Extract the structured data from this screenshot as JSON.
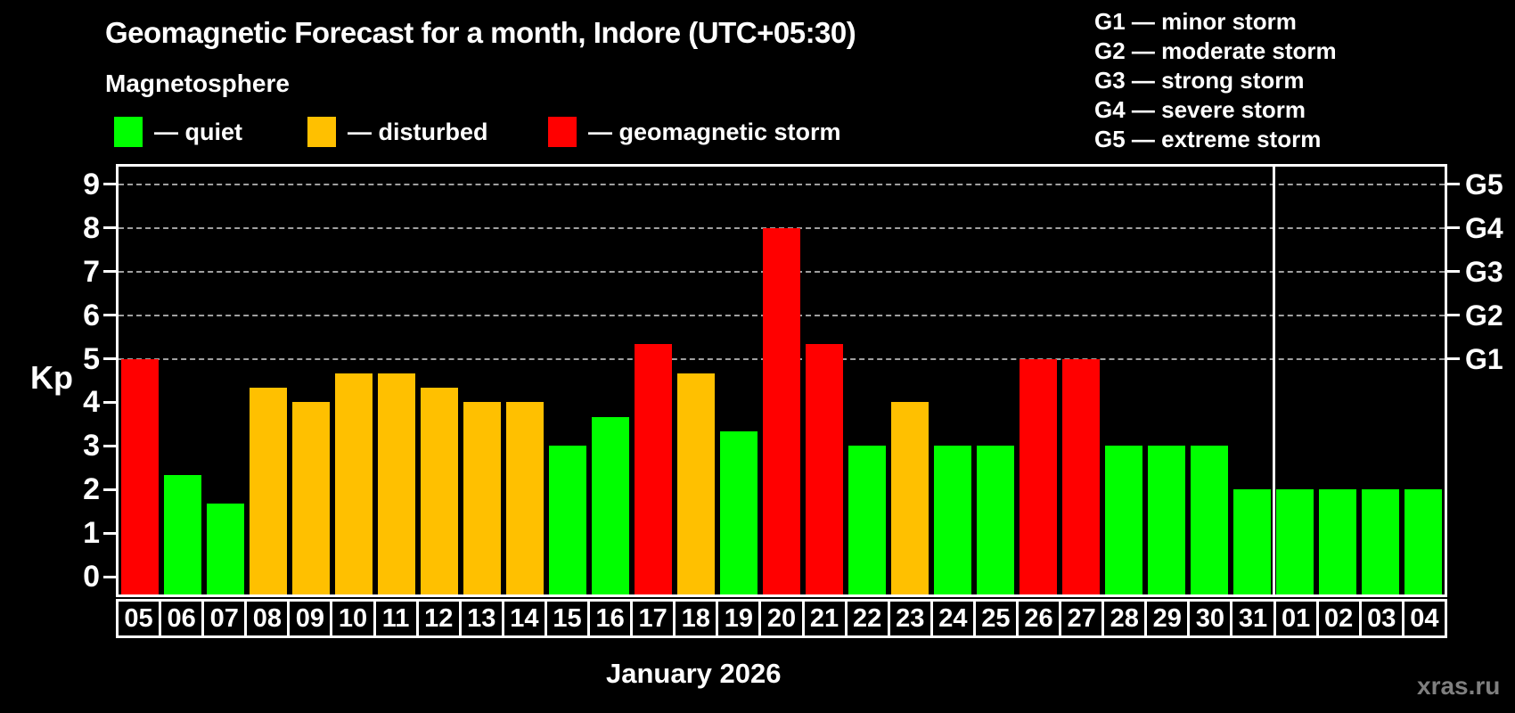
{
  "title": "Geomagnetic Forecast for a month, Indore (UTC+05:30)",
  "subtitle": "Magnetosphere",
  "legend": {
    "items": [
      {
        "key": "quiet",
        "label": "— quiet",
        "color": "#00ff00"
      },
      {
        "key": "disturbed",
        "label": "— disturbed",
        "color": "#ffc000"
      },
      {
        "key": "storm",
        "label": "— geomagnetic storm",
        "color": "#ff0000"
      }
    ]
  },
  "g_legend": {
    "items": [
      "G1 — minor storm",
      "G2 — moderate storm",
      "G3 — strong storm",
      "G4 — severe storm",
      "G5 — extreme storm"
    ]
  },
  "axis": {
    "y_label": "Kp",
    "y_ticks": [
      0,
      1,
      2,
      3,
      4,
      5,
      6,
      7,
      8,
      9
    ],
    "right_ticks": [
      {
        "label": "G1",
        "kp": 5
      },
      {
        "label": "G2",
        "kp": 6
      },
      {
        "label": "G3",
        "kp": 7
      },
      {
        "label": "G4",
        "kp": 8
      },
      {
        "label": "G5",
        "kp": 9
      }
    ]
  },
  "x_label": "January 2026",
  "watermark": "xras.ru",
  "chart_data": {
    "type": "bar",
    "title": "Geomagnetic Forecast for a month, Indore (UTC+05:30)",
    "xlabel": "January 2026",
    "ylabel": "Kp",
    "ylim": [
      0,
      9.45
    ],
    "grid": "horizontal dashed lines at Kp 5,6,7,8,9 (G1–G5)",
    "legend_position": "top-left (status colors), top-right (G scale)",
    "month_separator_after_index": 26,
    "categories": [
      "05",
      "06",
      "07",
      "08",
      "09",
      "10",
      "11",
      "12",
      "13",
      "14",
      "15",
      "16",
      "17",
      "18",
      "19",
      "20",
      "21",
      "22",
      "23",
      "24",
      "25",
      "26",
      "27",
      "28",
      "29",
      "30",
      "31",
      "01",
      "02",
      "03",
      "04"
    ],
    "values": [
      5,
      2.33,
      1.67,
      4.33,
      4,
      4.67,
      4.67,
      4.33,
      4,
      4,
      3,
      3.67,
      5.33,
      4.67,
      3.33,
      8,
      5.33,
      3,
      4,
      3,
      3,
      5,
      5,
      3,
      3,
      3,
      2,
      2,
      2,
      2,
      2
    ],
    "statuses": [
      "storm",
      "quiet",
      "quiet",
      "disturbed",
      "disturbed",
      "disturbed",
      "disturbed",
      "disturbed",
      "disturbed",
      "disturbed",
      "quiet",
      "quiet",
      "storm",
      "disturbed",
      "quiet",
      "storm",
      "storm",
      "quiet",
      "disturbed",
      "quiet",
      "quiet",
      "storm",
      "storm",
      "quiet",
      "quiet",
      "quiet",
      "quiet",
      "quiet",
      "quiet",
      "quiet",
      "quiet"
    ],
    "colors": {
      "quiet": "#00ff00",
      "disturbed": "#ffc000",
      "storm": "#ff0000"
    }
  }
}
